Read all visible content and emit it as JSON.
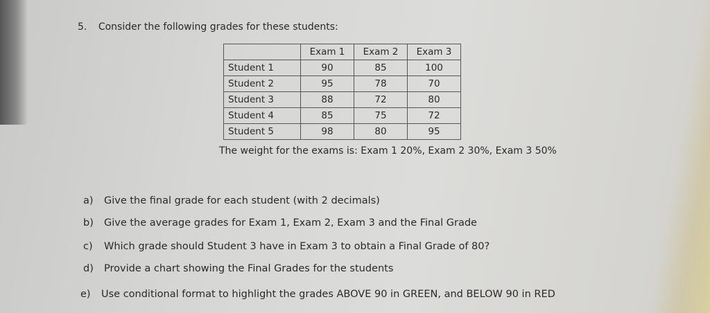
{
  "question": {
    "number": "5.",
    "text": "Consider the following grades for these students:"
  },
  "table": {
    "headers": [
      "",
      "Exam 1",
      "Exam 2",
      "Exam 3"
    ],
    "rows": [
      {
        "name": "Student 1",
        "values": [
          "90",
          "85",
          "100"
        ]
      },
      {
        "name": "Student 2",
        "values": [
          "95",
          "78",
          "70"
        ]
      },
      {
        "name": "Student 3",
        "values": [
          "88",
          "72",
          "80"
        ]
      },
      {
        "name": "Student 4",
        "values": [
          "85",
          "75",
          "72"
        ]
      },
      {
        "name": "Student 5",
        "values": [
          "98",
          "80",
          "95"
        ]
      }
    ]
  },
  "weight_text": "The weight for the exams is: Exam 1 20%, Exam 2 30%, Exam 3 50%",
  "subquestions": [
    {
      "label": "a)",
      "text": "Give the final grade for each student (with 2 decimals)"
    },
    {
      "label": "b)",
      "text": "Give the average grades for Exam 1, Exam 2, Exam 3 and the Final Grade"
    },
    {
      "label": "c)",
      "text": "Which grade should Student 3 have in Exam 3 to obtain a Final Grade of 80?"
    },
    {
      "label": "d)",
      "text": "Provide a chart showing the Final Grades for the students"
    },
    {
      "label": "e)",
      "text": "Use conditional format to highlight the grades ABOVE 90 in GREEN, and BELOW 90 in RED"
    }
  ]
}
